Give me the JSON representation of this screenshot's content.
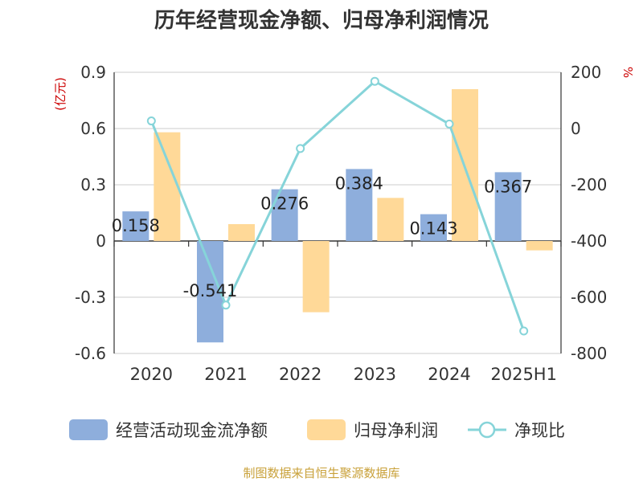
{
  "chart_data": {
    "type": "bar",
    "title": "历年经营现金净额、归母净利润情况",
    "categories": [
      "2020",
      "2021",
      "2022",
      "2023",
      "2024",
      "2025H1"
    ],
    "series": [
      {
        "name": "经营活动现金流净额",
        "axis": "left",
        "kind": "bar",
        "color": "#8eaedc",
        "values": [
          0.158,
          -0.541,
          0.276,
          0.384,
          0.143,
          0.367
        ],
        "labels": [
          "0.158",
          "-0.541",
          "0.276",
          "0.384",
          "0.143",
          "0.367"
        ]
      },
      {
        "name": "归母净利润",
        "axis": "left",
        "kind": "bar",
        "color": "#ffd998",
        "values": [
          0.58,
          0.09,
          -0.38,
          0.23,
          0.81,
          -0.05
        ]
      },
      {
        "name": "净现比",
        "axis": "right",
        "kind": "line",
        "color": "#86d4d9",
        "values": [
          27,
          -628,
          -71,
          168,
          16,
          -720
        ]
      }
    ],
    "y_left": {
      "unit": "(亿元)",
      "ticks": [
        "0.9",
        "0.6",
        "0.3",
        "0",
        "-0.3",
        "-0.6"
      ],
      "ylim": [
        -0.6,
        0.9
      ]
    },
    "y_right": {
      "unit": "%",
      "ticks": [
        "200",
        "0",
        "-200",
        "-400",
        "-600",
        "-800"
      ],
      "ylim": [
        -800,
        200
      ]
    },
    "grid": true,
    "legend": "bottom"
  },
  "source_note": "制图数据来自恒生聚源数据库"
}
